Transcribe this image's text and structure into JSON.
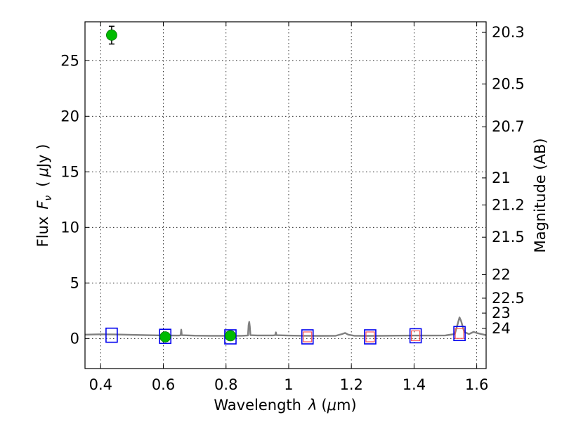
{
  "chart_data": {
    "type": "scatter",
    "title": "",
    "xlabel_parts": [
      "Wavelength",
      "λ",
      "(",
      "μ",
      "m)"
    ],
    "ylabel_parts": [
      "Flux",
      "F",
      "ν",
      "(",
      "μ",
      "Jy )"
    ],
    "y2label": "Magnitude (AB)",
    "xlim": [
      0.35,
      1.63
    ],
    "ylim": [
      -2.7,
      28.5
    ],
    "grid": true,
    "xticks": [
      {
        "value": 0.4,
        "label": "0.4"
      },
      {
        "value": 0.6,
        "label": "0.6"
      },
      {
        "value": 0.8,
        "label": "0.8"
      },
      {
        "value": 1.0,
        "label": "1"
      },
      {
        "value": 1.2,
        "label": "1.2"
      },
      {
        "value": 1.4,
        "label": "1.4"
      },
      {
        "value": 1.6,
        "label": "1.6"
      }
    ],
    "yticks": [
      {
        "value": 0,
        "label": "0"
      },
      {
        "value": 5,
        "label": "5"
      },
      {
        "value": 10,
        "label": "10"
      },
      {
        "value": 15,
        "label": "15"
      },
      {
        "value": 20,
        "label": "20"
      },
      {
        "value": 25,
        "label": "25"
      }
    ],
    "y2ticks": [
      {
        "mag": 20.3,
        "label": "20.3"
      },
      {
        "mag": 20.5,
        "label": "20.5"
      },
      {
        "mag": 20.7,
        "label": "20.7"
      },
      {
        "mag": 21,
        "label": "21"
      },
      {
        "mag": 21.2,
        "label": "21.2"
      },
      {
        "mag": 21.5,
        "label": "21.5"
      },
      {
        "mag": 22,
        "label": "22"
      },
      {
        "mag": 22.5,
        "label": "22.5"
      },
      {
        "mag": 23,
        "label": "23"
      },
      {
        "mag": 24,
        "label": "24"
      }
    ],
    "observed_points": {
      "color": "#00bb00",
      "points": [
        {
          "x": 0.435,
          "y": 27.3,
          "err": 0.8
        },
        {
          "x": 0.606,
          "y": 0.15,
          "err": 0.15
        },
        {
          "x": 0.814,
          "y": 0.25,
          "err": 0.15
        }
      ]
    },
    "model_bands_blue": {
      "color": "#0000ee",
      "points": [
        {
          "x": 0.435,
          "y": 0.3
        },
        {
          "x": 0.606,
          "y": 0.2
        },
        {
          "x": 0.814,
          "y": 0.15
        },
        {
          "x": 1.06,
          "y": 0.15
        },
        {
          "x": 1.26,
          "y": 0.15
        },
        {
          "x": 1.405,
          "y": 0.25
        },
        {
          "x": 1.545,
          "y": 0.45
        }
      ]
    },
    "model_bands_red": {
      "color": "#ff5555",
      "points": [
        {
          "x": 1.06,
          "y": 0.15
        },
        {
          "x": 1.26,
          "y": 0.15
        },
        {
          "x": 1.405,
          "y": 0.25
        },
        {
          "x": 1.545,
          "y": 0.45
        }
      ]
    },
    "spectrum": {
      "color": "#808080",
      "points": [
        [
          0.35,
          0.35
        ],
        [
          0.4,
          0.38
        ],
        [
          0.45,
          0.36
        ],
        [
          0.5,
          0.33
        ],
        [
          0.55,
          0.3
        ],
        [
          0.6,
          0.28
        ],
        [
          0.65,
          0.27
        ],
        [
          0.655,
          0.3
        ],
        [
          0.657,
          0.8
        ],
        [
          0.659,
          0.3
        ],
        [
          0.7,
          0.26
        ],
        [
          0.75,
          0.25
        ],
        [
          0.8,
          0.25
        ],
        [
          0.85,
          0.25
        ],
        [
          0.87,
          0.28
        ],
        [
          0.872,
          1.2
        ],
        [
          0.874,
          1.5
        ],
        [
          0.876,
          1.1
        ],
        [
          0.878,
          0.3
        ],
        [
          0.9,
          0.28
        ],
        [
          0.95,
          0.28
        ],
        [
          0.957,
          0.3
        ],
        [
          0.959,
          0.55
        ],
        [
          0.961,
          0.3
        ],
        [
          1.0,
          0.27
        ],
        [
          1.05,
          0.25
        ],
        [
          1.1,
          0.24
        ],
        [
          1.15,
          0.25
        ],
        [
          1.17,
          0.4
        ],
        [
          1.18,
          0.5
        ],
        [
          1.19,
          0.35
        ],
        [
          1.21,
          0.25
        ],
        [
          1.25,
          0.24
        ],
        [
          1.3,
          0.25
        ],
        [
          1.35,
          0.26
        ],
        [
          1.4,
          0.27
        ],
        [
          1.45,
          0.27
        ],
        [
          1.5,
          0.28
        ],
        [
          1.53,
          0.4
        ],
        [
          1.545,
          1.9
        ],
        [
          1.55,
          1.6
        ],
        [
          1.56,
          0.6
        ],
        [
          1.575,
          0.4
        ],
        [
          1.59,
          0.6
        ],
        [
          1.6,
          0.5
        ],
        [
          1.63,
          0.3
        ]
      ]
    }
  }
}
